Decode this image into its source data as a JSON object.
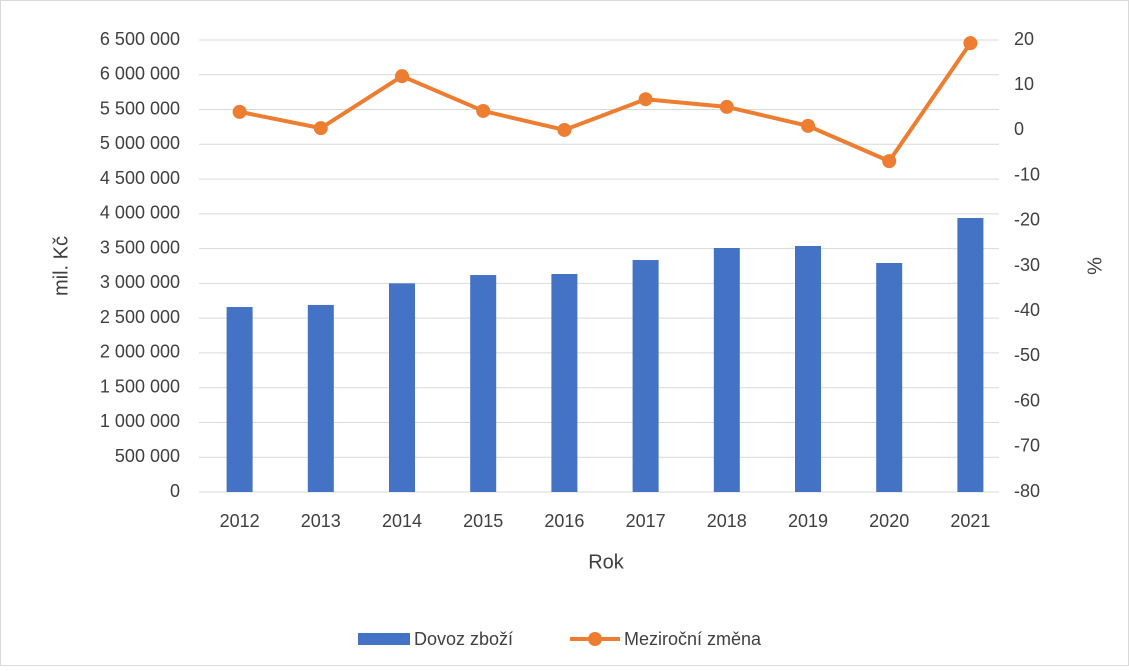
{
  "chart_data": {
    "type": "bar-line",
    "categories": [
      "2012",
      "2013",
      "2014",
      "2015",
      "2016",
      "2017",
      "2018",
      "2019",
      "2020",
      "2021"
    ],
    "series": [
      {
        "name": "Dovoz zboží",
        "type": "bar",
        "color": "#4472c4",
        "values": [
          2660000,
          2690000,
          3000000,
          3120000,
          3135000,
          3336000,
          3509000,
          3538000,
          3293000,
          3940000
        ]
      },
      {
        "name": "Meziroční změna",
        "type": "line",
        "axis": "y2",
        "color": "#ed7d31",
        "values": [
          4.1,
          0.5,
          12.0,
          4.3,
          0.1,
          6.9,
          5.2,
          1.0,
          -6.8,
          19.3
        ]
      }
    ],
    "x_label": "Rok",
    "y_label": "mil. Kč",
    "y2_label": "%",
    "ylim": [
      0,
      6500000
    ],
    "yticks": [
      0,
      {
        "value": 500000,
        "label": "500 000"
      },
      {
        "value": 1000000,
        "label": "1 000 000"
      },
      {
        "value": 1500000,
        "label": "1 500 000"
      },
      {
        "value": 2000000,
        "label": "2 000 000"
      },
      {
        "value": 2500000,
        "label": "2 500 000"
      },
      {
        "value": 3000000,
        "label": "3 000 000"
      },
      {
        "value": 3500000,
        "label": "3 500 000"
      },
      {
        "value": 4000000,
        "label": "4 000 000"
      },
      {
        "value": 4500000,
        "label": "4 500 000"
      },
      {
        "value": 5000000,
        "label": "5 000 000"
      },
      {
        "value": 5500000,
        "label": "5 500 000"
      },
      {
        "value": 6000000,
        "label": "6 000 000"
      },
      {
        "value": 6500000,
        "label": "6 500 000"
      }
    ],
    "y2lim": [
      -80,
      20
    ],
    "y2ticks": [
      -80,
      -70,
      -60,
      -50,
      -40,
      -30,
      -20,
      -10,
      0,
      10,
      20
    ],
    "grid": true,
    "legend": "bottom"
  }
}
